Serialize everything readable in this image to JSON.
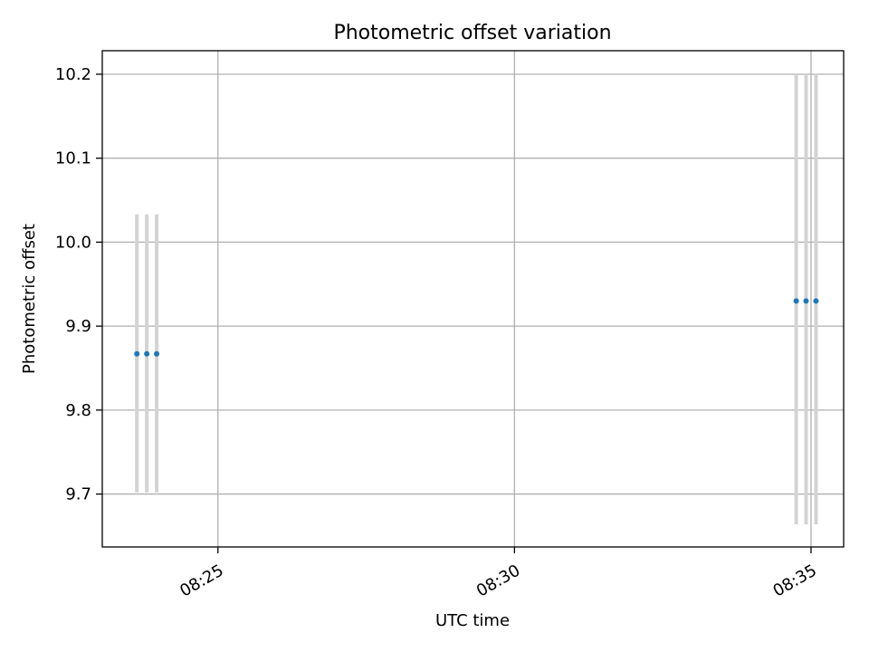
{
  "chart_data": {
    "type": "scatter",
    "title": "Photometric offset variation",
    "xlabel": "UTC time",
    "ylabel": "Photometric offset",
    "x_axis_type": "time",
    "xlim": [
      "08:23:03",
      "08:35:33"
    ],
    "ylim": [
      9.637,
      10.228
    ],
    "xticks": [
      "08:25",
      "08:30",
      "08:35"
    ],
    "yticks": [
      9.7,
      9.8,
      9.9,
      10.0,
      10.1,
      10.2
    ],
    "ytick_labels": [
      "9.7",
      "9.8",
      "9.9",
      "10.0",
      "10.1",
      "10.2"
    ],
    "grid": true,
    "legend": "none",
    "colors": {
      "points": "#1f77b4",
      "error_bars": "#d3d3d3"
    },
    "series": [
      {
        "points": [
          {
            "x": "08:23:38",
            "y": 9.867,
            "ylo": 9.702,
            "yhi": 10.033
          },
          {
            "x": "08:23:48",
            "y": 9.867,
            "ylo": 9.702,
            "yhi": 10.033
          },
          {
            "x": "08:23:58",
            "y": 9.867,
            "ylo": 9.702,
            "yhi": 10.033
          },
          {
            "x": "08:34:45",
            "y": 9.93,
            "ylo": 9.664,
            "yhi": 10.2
          },
          {
            "x": "08:34:55",
            "y": 9.93,
            "ylo": 9.664,
            "yhi": 10.2
          },
          {
            "x": "08:35:05",
            "y": 9.93,
            "ylo": 9.664,
            "yhi": 10.2
          }
        ]
      }
    ]
  }
}
